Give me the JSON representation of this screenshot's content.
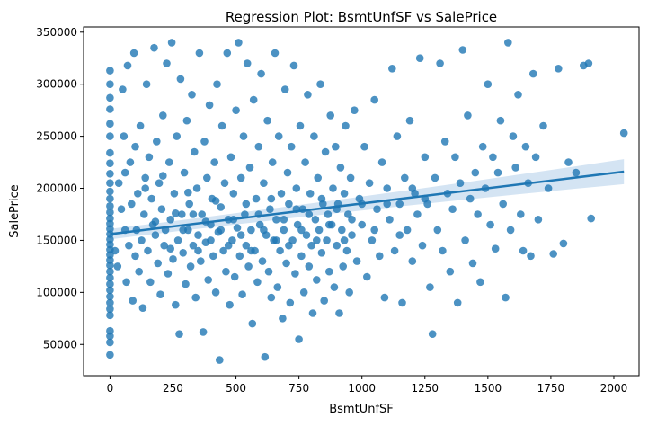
{
  "chart_data": {
    "type": "scatter",
    "title": "Regression Plot: BsmtUnfSF vs SalePrice",
    "xlabel": "BsmtUnfSF",
    "ylabel": "SalePrice",
    "xlim": [
      -105,
      2100
    ],
    "ylim": [
      20000,
      355000
    ],
    "xticks": [
      0,
      250,
      500,
      750,
      1000,
      1250,
      1500,
      1750,
      2000
    ],
    "yticks": [
      50000,
      100000,
      150000,
      200000,
      250000,
      300000,
      350000
    ],
    "grid": false,
    "point_color": "#1f77b4",
    "band_color": "#c6dbef",
    "regression": {
      "x_start": 0,
      "x_end": 2040,
      "y_start": 156000,
      "y_end": 216000,
      "ci_half_width_start": 5000,
      "ci_half_width_end": 12000
    },
    "points": [
      [
        0,
        40000
      ],
      [
        0,
        52000
      ],
      [
        0,
        58000
      ],
      [
        0,
        63000
      ],
      [
        0,
        78000
      ],
      [
        0,
        84000
      ],
      [
        0,
        90000
      ],
      [
        0,
        96000
      ],
      [
        0,
        102000
      ],
      [
        0,
        108000
      ],
      [
        0,
        114000
      ],
      [
        0,
        120000
      ],
      [
        0,
        126000
      ],
      [
        0,
        131000
      ],
      [
        0,
        136000
      ],
      [
        0,
        141000
      ],
      [
        0,
        146000
      ],
      [
        0,
        151000
      ],
      [
        0,
        156000
      ],
      [
        0,
        161000
      ],
      [
        0,
        166000
      ],
      [
        0,
        171000
      ],
      [
        0,
        177000
      ],
      [
        0,
        183000
      ],
      [
        0,
        190000
      ],
      [
        0,
        197000
      ],
      [
        0,
        205000
      ],
      [
        0,
        214000
      ],
      [
        0,
        224000
      ],
      [
        0,
        234000
      ],
      [
        0,
        250000
      ],
      [
        0,
        262000
      ],
      [
        0,
        276000
      ],
      [
        0,
        287000
      ],
      [
        0,
        300000
      ],
      [
        0,
        313000
      ],
      [
        20,
        140000
      ],
      [
        30,
        125000
      ],
      [
        35,
        205000
      ],
      [
        45,
        180000
      ],
      [
        50,
        295000
      ],
      [
        55,
        250000
      ],
      [
        60,
        160000
      ],
      [
        65,
        110000
      ],
      [
        70,
        318000
      ],
      [
        75,
        145000
      ],
      [
        80,
        225000
      ],
      [
        85,
        185000
      ],
      [
        90,
        92000
      ],
      [
        95,
        330000
      ],
      [
        100,
        135000
      ],
      [
        100,
        240000
      ],
      [
        105,
        160000
      ],
      [
        110,
        195000
      ],
      [
        115,
        120000
      ],
      [
        120,
        260000
      ],
      [
        125,
        150000
      ],
      [
        130,
        85000
      ],
      [
        135,
        175000
      ],
      [
        140,
        210000
      ],
      [
        145,
        300000
      ],
      [
        150,
        140000
      ],
      [
        155,
        230000
      ],
      [
        160,
        110000
      ],
      [
        165,
        190000
      ],
      [
        170,
        165000
      ],
      [
        175,
        335000
      ],
      [
        180,
        155000
      ],
      [
        185,
        245000
      ],
      [
        190,
        128000
      ],
      [
        195,
        205000
      ],
      [
        200,
        98000
      ],
      [
        205,
        180000
      ],
      [
        210,
        270000
      ],
      [
        215,
        145000
      ],
      [
        220,
        160000
      ],
      [
        225,
        320000
      ],
      [
        230,
        118000
      ],
      [
        235,
        225000
      ],
      [
        240,
        170000
      ],
      [
        245,
        340000
      ],
      [
        250,
        132000
      ],
      [
        255,
        195000
      ],
      [
        260,
        88000
      ],
      [
        265,
        250000
      ],
      [
        270,
        150000
      ],
      [
        275,
        60000
      ],
      [
        280,
        305000
      ],
      [
        285,
        175000
      ],
      [
        290,
        138000
      ],
      [
        295,
        215000
      ],
      [
        300,
        108000
      ],
      [
        305,
        265000
      ],
      [
        310,
        160000
      ],
      [
        315,
        185000
      ],
      [
        320,
        125000
      ],
      [
        325,
        290000
      ],
      [
        330,
        145000
      ],
      [
        335,
        235000
      ],
      [
        340,
        95000
      ],
      [
        345,
        200000
      ],
      [
        350,
        155000
      ],
      [
        355,
        330000
      ],
      [
        360,
        130000
      ],
      [
        365,
        175000
      ],
      [
        370,
        62000
      ],
      [
        375,
        245000
      ],
      [
        380,
        148000
      ],
      [
        385,
        210000
      ],
      [
        390,
        112000
      ],
      [
        395,
        280000
      ],
      [
        400,
        165000
      ],
      [
        405,
        190000
      ],
      [
        410,
        135000
      ],
      [
        415,
        225000
      ],
      [
        420,
        100000
      ],
      [
        425,
        300000
      ],
      [
        430,
        158000
      ],
      [
        435,
        35000
      ],
      [
        440,
        182000
      ],
      [
        445,
        260000
      ],
      [
        450,
        140000
      ],
      [
        455,
        205000
      ],
      [
        460,
        120000
      ],
      [
        465,
        330000
      ],
      [
        470,
        170000
      ],
      [
        475,
        88000
      ],
      [
        480,
        230000
      ],
      [
        485,
        150000
      ],
      [
        490,
        195000
      ],
      [
        495,
        115000
      ],
      [
        500,
        275000
      ],
      [
        505,
        162000
      ],
      [
        510,
        340000
      ],
      [
        515,
        135000
      ],
      [
        520,
        210000
      ],
      [
        525,
        98000
      ],
      [
        530,
        250000
      ],
      [
        535,
        175000
      ],
      [
        540,
        145000
      ],
      [
        545,
        320000
      ],
      [
        550,
        125000
      ],
      [
        555,
        220000
      ],
      [
        560,
        160000
      ],
      [
        565,
        70000
      ],
      [
        570,
        285000
      ],
      [
        575,
        140000
      ],
      [
        580,
        190000
      ],
      [
        585,
        110000
      ],
      [
        590,
        240000
      ],
      [
        595,
        165000
      ],
      [
        600,
        310000
      ],
      [
        605,
        130000
      ],
      [
        610,
        205000
      ],
      [
        615,
        38000
      ],
      [
        620,
        155000
      ],
      [
        625,
        265000
      ],
      [
        630,
        120000
      ],
      [
        635,
        180000
      ],
      [
        640,
        95000
      ],
      [
        645,
        225000
      ],
      [
        650,
        150000
      ],
      [
        655,
        330000
      ],
      [
        660,
        170000
      ],
      [
        665,
        105000
      ],
      [
        670,
        250000
      ],
      [
        675,
        140000
      ],
      [
        680,
        195000
      ],
      [
        685,
        75000
      ],
      [
        690,
        160000
      ],
      [
        695,
        295000
      ],
      [
        700,
        128000
      ],
      [
        705,
        215000
      ],
      [
        710,
        185000
      ],
      [
        715,
        90000
      ],
      [
        720,
        240000
      ],
      [
        725,
        150000
      ],
      [
        730,
        318000
      ],
      [
        735,
        118000
      ],
      [
        740,
        200000
      ],
      [
        745,
        165000
      ],
      [
        750,
        55000
      ],
      [
        755,
        260000
      ],
      [
        760,
        135000
      ],
      [
        765,
        180000
      ],
      [
        770,
        100000
      ],
      [
        775,
        225000
      ],
      [
        780,
        155000
      ],
      [
        785,
        290000
      ],
      [
        790,
        125000
      ],
      [
        795,
        195000
      ],
      [
        800,
        145000
      ],
      [
        805,
        80000
      ],
      [
        810,
        250000
      ],
      [
        815,
        170000
      ],
      [
        820,
        112000
      ],
      [
        825,
        210000
      ],
      [
        830,
        160000
      ],
      [
        835,
        300000
      ],
      [
        840,
        138000
      ],
      [
        845,
        185000
      ],
      [
        850,
        92000
      ],
      [
        855,
        235000
      ],
      [
        860,
        150000
      ],
      [
        865,
        175000
      ],
      [
        870,
        120000
      ],
      [
        875,
        270000
      ],
      [
        880,
        165000
      ],
      [
        885,
        200000
      ],
      [
        890,
        105000
      ],
      [
        895,
        240000
      ],
      [
        900,
        145000
      ],
      [
        905,
        185000
      ],
      [
        910,
        80000
      ],
      [
        915,
        220000
      ],
      [
        920,
        160000
      ],
      [
        925,
        125000
      ],
      [
        930,
        195000
      ],
      [
        935,
        260000
      ],
      [
        940,
        140000
      ],
      [
        945,
        175000
      ],
      [
        950,
        100000
      ],
      [
        955,
        210000
      ],
      [
        960,
        155000
      ],
      [
        970,
        275000
      ],
      [
        980,
        130000
      ],
      [
        990,
        190000
      ],
      [
        1000,
        165000
      ],
      [
        1010,
        240000
      ],
      [
        1020,
        115000
      ],
      [
        1030,
        205000
      ],
      [
        1040,
        150000
      ],
      [
        1050,
        285000
      ],
      [
        1060,
        180000
      ],
      [
        1070,
        135000
      ],
      [
        1080,
        225000
      ],
      [
        1090,
        95000
      ],
      [
        1100,
        200000
      ],
      [
        1110,
        170000
      ],
      [
        1120,
        315000
      ],
      [
        1130,
        140000
      ],
      [
        1140,
        250000
      ],
      [
        1150,
        185000
      ],
      [
        1160,
        90000
      ],
      [
        1170,
        210000
      ],
      [
        1180,
        160000
      ],
      [
        1190,
        265000
      ],
      [
        1200,
        130000
      ],
      [
        1210,
        195000
      ],
      [
        1220,
        175000
      ],
      [
        1230,
        325000
      ],
      [
        1240,
        145000
      ],
      [
        1250,
        230000
      ],
      [
        1260,
        185000
      ],
      [
        1270,
        105000
      ],
      [
        1280,
        60000
      ],
      [
        1290,
        210000
      ],
      [
        1300,
        160000
      ],
      [
        1310,
        320000
      ],
      [
        1320,
        140000
      ],
      [
        1330,
        245000
      ],
      [
        1340,
        195000
      ],
      [
        1350,
        120000
      ],
      [
        1360,
        180000
      ],
      [
        1370,
        230000
      ],
      [
        1380,
        90000
      ],
      [
        1390,
        205000
      ],
      [
        1400,
        333000
      ],
      [
        1410,
        150000
      ],
      [
        1420,
        270000
      ],
      [
        1430,
        190000
      ],
      [
        1440,
        128000
      ],
      [
        1450,
        215000
      ],
      [
        1460,
        175000
      ],
      [
        1470,
        110000
      ],
      [
        1480,
        240000
      ],
      [
        1490,
        200000
      ],
      [
        1500,
        300000
      ],
      [
        1510,
        165000
      ],
      [
        1520,
        230000
      ],
      [
        1530,
        142000
      ],
      [
        1540,
        215000
      ],
      [
        1550,
        265000
      ],
      [
        1560,
        185000
      ],
      [
        1570,
        95000
      ],
      [
        1580,
        340000
      ],
      [
        1590,
        160000
      ],
      [
        1600,
        250000
      ],
      [
        1610,
        220000
      ],
      [
        1620,
        290000
      ],
      [
        1630,
        175000
      ],
      [
        1640,
        140000
      ],
      [
        1650,
        240000
      ],
      [
        1660,
        205000
      ],
      [
        1670,
        135000
      ],
      [
        1680,
        310000
      ],
      [
        1690,
        230000
      ],
      [
        1700,
        170000
      ],
      [
        1720,
        260000
      ],
      [
        1740,
        200000
      ],
      [
        1760,
        137000
      ],
      [
        1780,
        315000
      ],
      [
        1800,
        147000
      ],
      [
        1820,
        225000
      ],
      [
        1850,
        215000
      ],
      [
        1880,
        318000
      ],
      [
        1900,
        320000
      ],
      [
        1910,
        171000
      ],
      [
        2040,
        253000
      ],
      [
        60,
        215000
      ],
      [
        140,
        200000
      ],
      [
        180,
        168000
      ],
      [
        210,
        212000
      ],
      [
        240,
        142000
      ],
      [
        260,
        176000
      ],
      [
        290,
        160000
      ],
      [
        310,
        196000
      ],
      [
        330,
        175000
      ],
      [
        350,
        140000
      ],
      [
        380,
        168000
      ],
      [
        400,
        150000
      ],
      [
        420,
        188000
      ],
      [
        440,
        160000
      ],
      [
        470,
        145000
      ],
      [
        490,
        170000
      ],
      [
        520,
        155000
      ],
      [
        540,
        185000
      ],
      [
        560,
        140000
      ],
      [
        590,
        175000
      ],
      [
        610,
        160000
      ],
      [
        640,
        190000
      ],
      [
        660,
        150000
      ],
      [
        690,
        170000
      ],
      [
        710,
        145000
      ],
      [
        740,
        180000
      ],
      [
        760,
        160000
      ],
      [
        790,
        175000
      ],
      [
        820,
        150000
      ],
      [
        840,
        190000
      ],
      [
        870,
        165000
      ],
      [
        900,
        180000
      ],
      [
        930,
        150000
      ],
      [
        960,
        170000
      ],
      [
        1000,
        185000
      ],
      [
        1050,
        160000
      ],
      [
        1100,
        185000
      ],
      [
        1150,
        155000
      ],
      [
        1200,
        200000
      ],
      [
        1250,
        190000
      ]
    ]
  }
}
